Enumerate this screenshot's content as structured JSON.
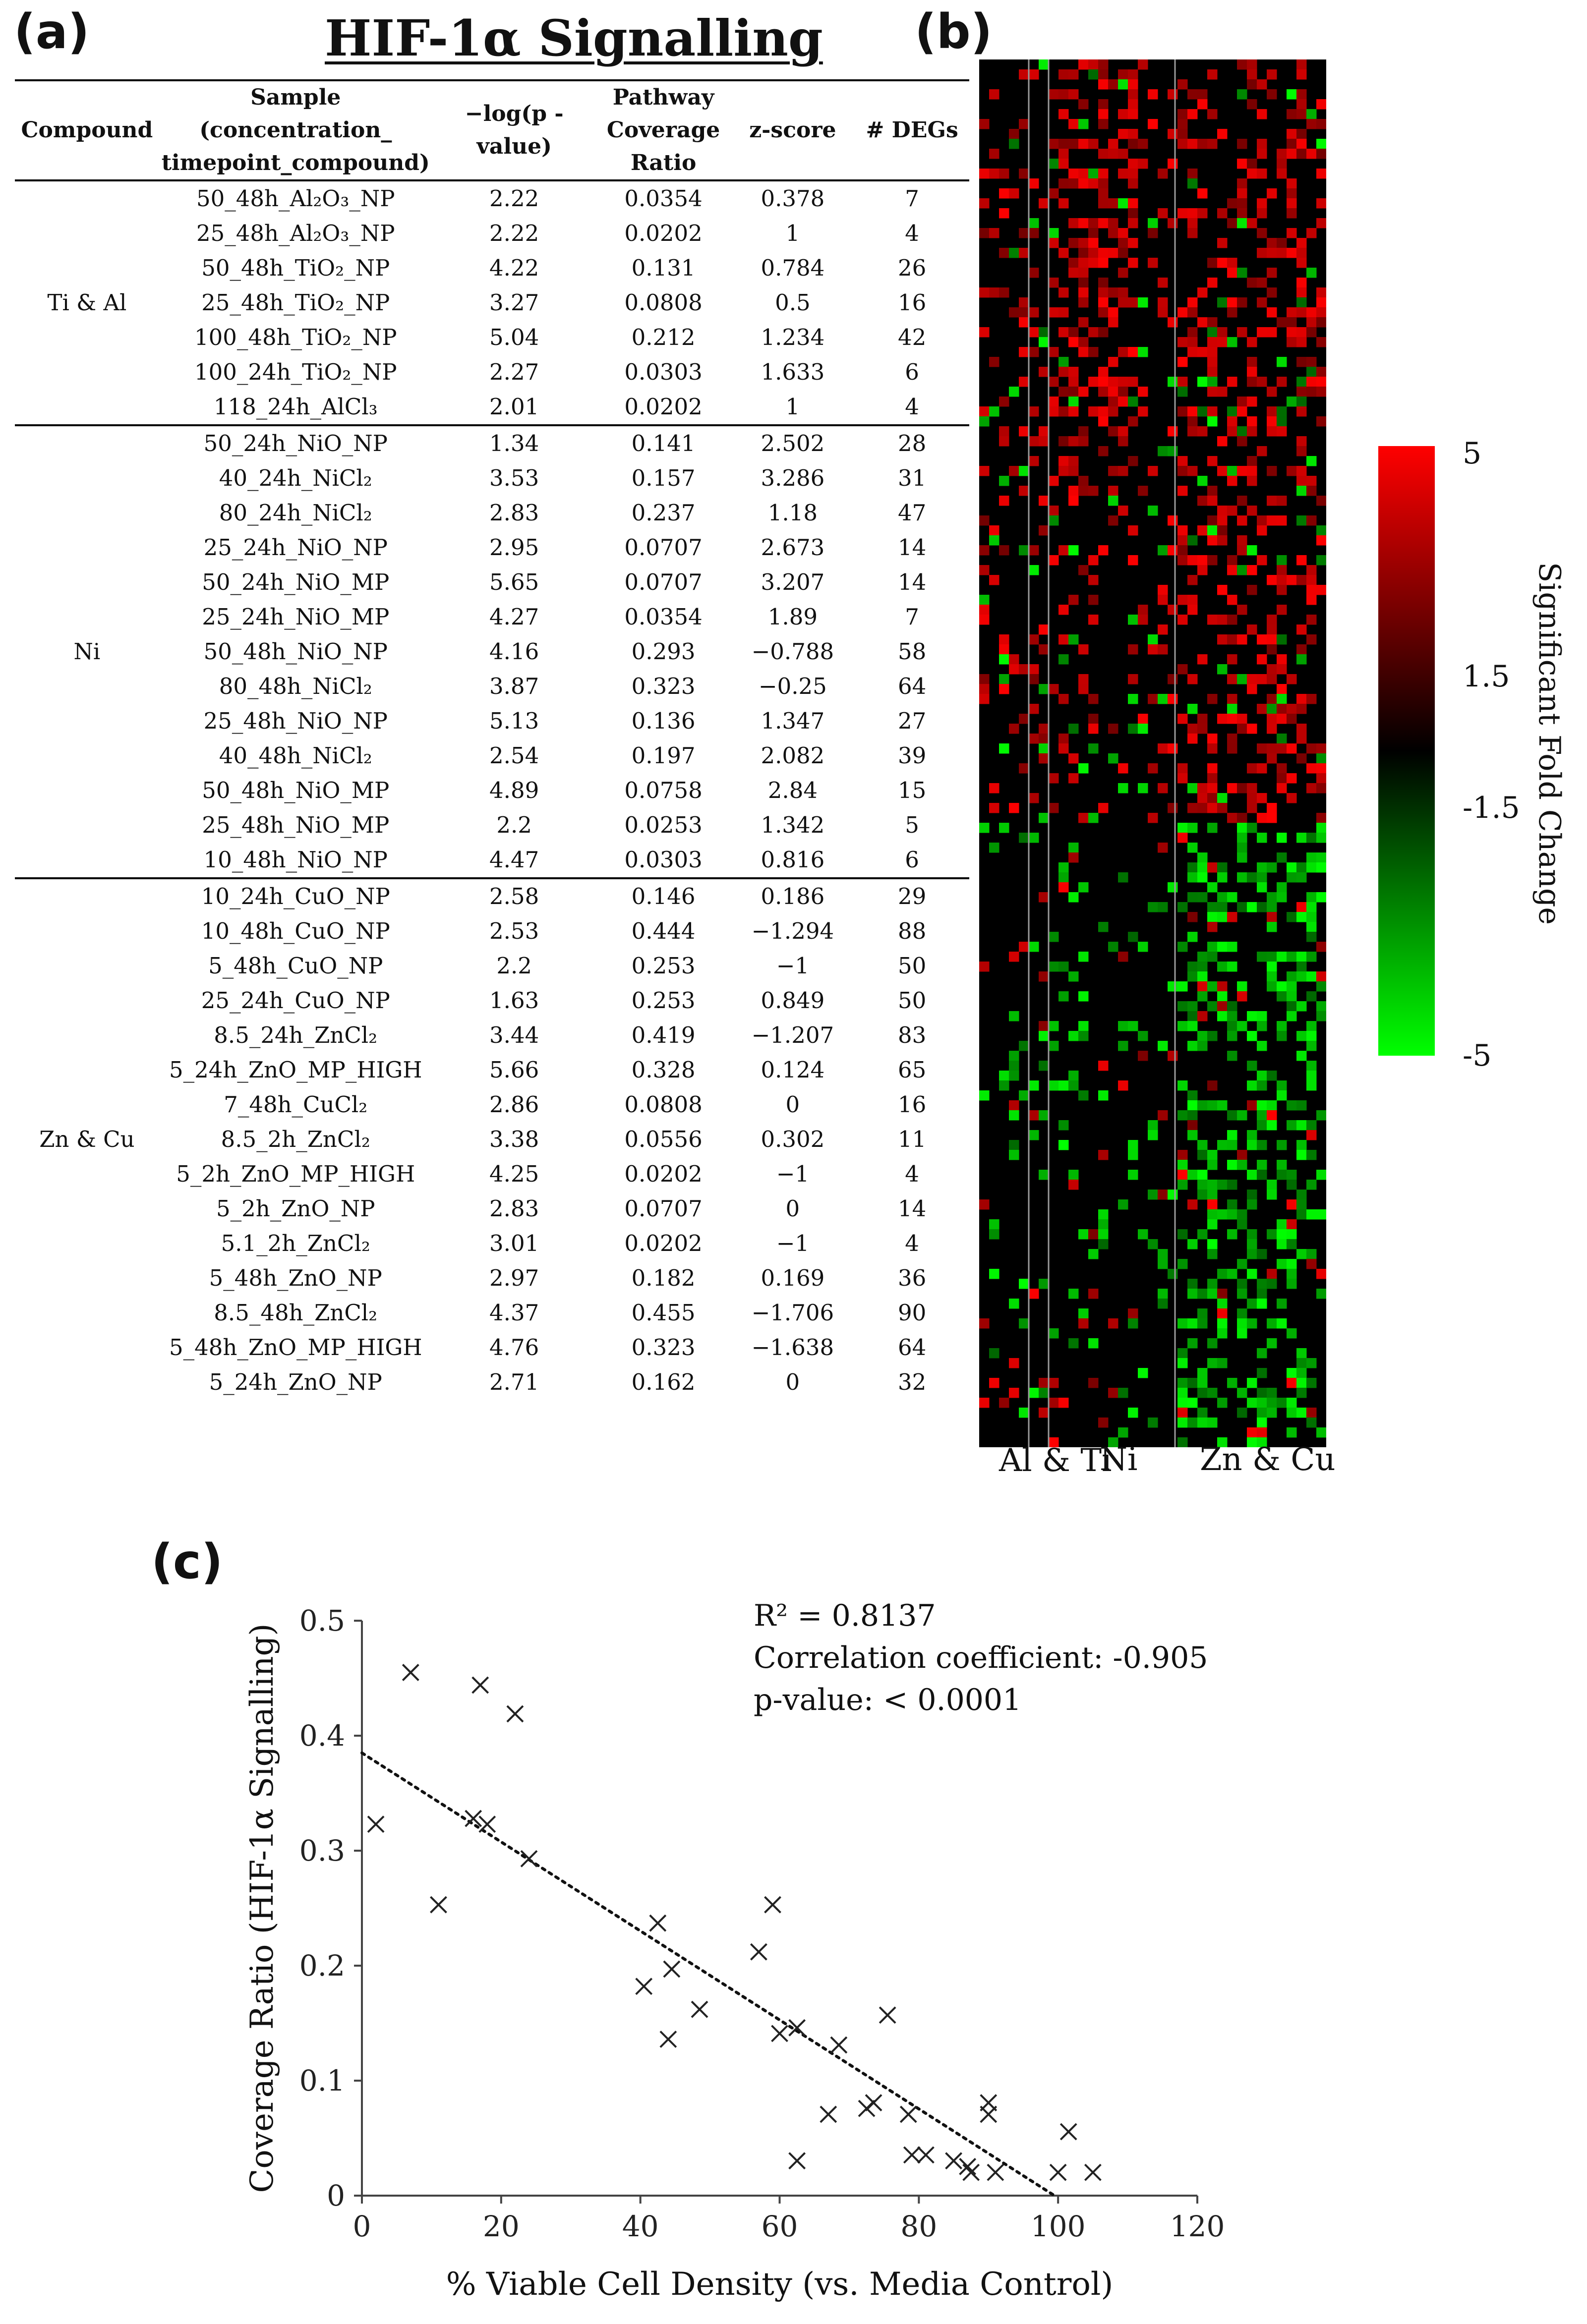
{
  "panels": {
    "a": "(a)",
    "b": "(b)",
    "c": "(c)"
  },
  "title": "HIF-1α Signalling",
  "table": {
    "headers": [
      "Compound",
      "Sample (concentration_ timepoint_compound)",
      "−log(p -value)",
      "Pathway Coverage Ratio",
      "z-score",
      "# DEGs"
    ],
    "groups": [
      {
        "name": "Ti & Al",
        "rows": [
          [
            "50_48h_Al₂O₃_NP",
            "2.22",
            "0.0354",
            "0.378",
            "7"
          ],
          [
            "25_48h_Al₂O₃_NP",
            "2.22",
            "0.0202",
            "1",
            "4"
          ],
          [
            "50_48h_TiO₂_NP",
            "4.22",
            "0.131",
            "0.784",
            "26"
          ],
          [
            "25_48h_TiO₂_NP",
            "3.27",
            "0.0808",
            "0.5",
            "16"
          ],
          [
            "100_48h_TiO₂_NP",
            "5.04",
            "0.212",
            "1.234",
            "42"
          ],
          [
            "100_24h_TiO₂_NP",
            "2.27",
            "0.0303",
            "1.633",
            "6"
          ],
          [
            "118_24h_AlCl₃",
            "2.01",
            "0.0202",
            "1",
            "4"
          ]
        ]
      },
      {
        "name": "Ni",
        "rows": [
          [
            "50_24h_NiO_NP",
            "1.34",
            "0.141",
            "2.502",
            "28"
          ],
          [
            "40_24h_NiCl₂",
            "3.53",
            "0.157",
            "3.286",
            "31"
          ],
          [
            "80_24h_NiCl₂",
            "2.83",
            "0.237",
            "1.18",
            "47"
          ],
          [
            "25_24h_NiO_NP",
            "2.95",
            "0.0707",
            "2.673",
            "14"
          ],
          [
            "50_24h_NiO_MP",
            "5.65",
            "0.0707",
            "3.207",
            "14"
          ],
          [
            "25_24h_NiO_MP",
            "4.27",
            "0.0354",
            "1.89",
            "7"
          ],
          [
            "50_48h_NiO_NP",
            "4.16",
            "0.293",
            "−0.788",
            "58"
          ],
          [
            "80_48h_NiCl₂",
            "3.87",
            "0.323",
            "−0.25",
            "64"
          ],
          [
            "25_48h_NiO_NP",
            "5.13",
            "0.136",
            "1.347",
            "27"
          ],
          [
            "40_48h_NiCl₂",
            "2.54",
            "0.197",
            "2.082",
            "39"
          ],
          [
            "50_48h_NiO_MP",
            "4.89",
            "0.0758",
            "2.84",
            "15"
          ],
          [
            "25_48h_NiO_MP",
            "2.2",
            "0.0253",
            "1.342",
            "5"
          ],
          [
            "10_48h_NiO_NP",
            "4.47",
            "0.0303",
            "0.816",
            "6"
          ]
        ]
      },
      {
        "name": "Zn & Cu",
        "rows": [
          [
            "10_24h_CuO_NP",
            "2.58",
            "0.146",
            "0.186",
            "29"
          ],
          [
            "10_48h_CuO_NP",
            "2.53",
            "0.444",
            "−1.294",
            "88"
          ],
          [
            "5_48h_CuO_NP",
            "2.2",
            "0.253",
            "−1",
            "50"
          ],
          [
            "25_24h_CuO_NP",
            "1.63",
            "0.253",
            "0.849",
            "50"
          ],
          [
            "8.5_24h_ZnCl₂",
            "3.44",
            "0.419",
            "−1.207",
            "83"
          ],
          [
            "5_24h_ZnO_MP_HIGH",
            "5.66",
            "0.328",
            "0.124",
            "65"
          ],
          [
            "7_48h_CuCl₂",
            "2.86",
            "0.0808",
            "0",
            "16"
          ],
          [
            "8.5_2h_ZnCl₂",
            "3.38",
            "0.0556",
            "0.302",
            "11"
          ],
          [
            "5_2h_ZnO_MP_HIGH",
            "4.25",
            "0.0202",
            "−1",
            "4"
          ],
          [
            "5_2h_ZnO_NP",
            "2.83",
            "0.0707",
            "0",
            "14"
          ],
          [
            "5.1_2h_ZnCl₂",
            "3.01",
            "0.0202",
            "−1",
            "4"
          ],
          [
            "5_48h_ZnO_NP",
            "2.97",
            "0.182",
            "0.169",
            "36"
          ],
          [
            "8.5_48h_ZnCl₂",
            "4.37",
            "0.455",
            "−1.706",
            "90"
          ],
          [
            "5_48h_ZnO_MP_HIGH",
            "4.76",
            "0.323",
            "−1.638",
            "64"
          ],
          [
            "5_24h_ZnO_NP",
            "2.71",
            "0.162",
            "0",
            "32"
          ]
        ]
      }
    ]
  },
  "heatmap": {
    "group_labels": [
      "Al & Ti",
      "Ni",
      "Zn & Cu"
    ],
    "colorbar": {
      "title": "Significant Fold Change",
      "ticks": [
        "5",
        "1.5",
        "-1.5",
        "-5"
      ],
      "colors": {
        "high": "#ff0000",
        "mid": "#000000",
        "low": "#00ff00"
      }
    }
  },
  "chart_data": {
    "type": "scatter",
    "xlabel": "% Viable Cell Density (vs. Media Control)",
    "ylabel": "Coverage Ratio (HIF-1α Signalling)",
    "xlim": [
      0,
      120
    ],
    "ylim": [
      0,
      0.5
    ],
    "xticks": [
      "0",
      "20",
      "40",
      "60",
      "80",
      "100",
      "120"
    ],
    "yticks": [
      "0",
      "0.1",
      "0.2",
      "0.3",
      "0.4",
      "0.5"
    ],
    "points": [
      [
        2,
        0.323
      ],
      [
        7,
        0.455
      ],
      [
        11,
        0.253
      ],
      [
        16,
        0.328
      ],
      [
        17,
        0.444
      ],
      [
        18,
        0.323
      ],
      [
        22,
        0.419
      ],
      [
        24,
        0.293
      ],
      [
        40.5,
        0.182
      ],
      [
        42.5,
        0.237
      ],
      [
        44,
        0.136
      ],
      [
        44.5,
        0.197
      ],
      [
        48.5,
        0.162
      ],
      [
        57,
        0.212
      ],
      [
        59,
        0.253
      ],
      [
        60,
        0.141
      ],
      [
        62.5,
        0.146
      ],
      [
        62.5,
        0.0303
      ],
      [
        67,
        0.0707
      ],
      [
        68.5,
        0.131
      ],
      [
        72.5,
        0.0758
      ],
      [
        73.5,
        0.0808
      ],
      [
        75.5,
        0.157
      ],
      [
        78.5,
        0.0707
      ],
      [
        79,
        0.0354
      ],
      [
        81,
        0.0354
      ],
      [
        85,
        0.0303
      ],
      [
        87,
        0.0253
      ],
      [
        87.5,
        0.0202
      ],
      [
        90,
        0.0808
      ],
      [
        90,
        0.0707
      ],
      [
        91,
        0.0202
      ],
      [
        100,
        0.0202
      ],
      [
        101.5,
        0.0556
      ],
      [
        105,
        0.0202
      ]
    ],
    "trendline": {
      "intercept": 0.385,
      "slope": -0.00387,
      "style": "dotted"
    },
    "annotations": [
      "R² = 0.8137",
      "Correlation coefficient: -0.905",
      "p-value: < 0.0001"
    ],
    "marker": "x",
    "grid": false
  }
}
